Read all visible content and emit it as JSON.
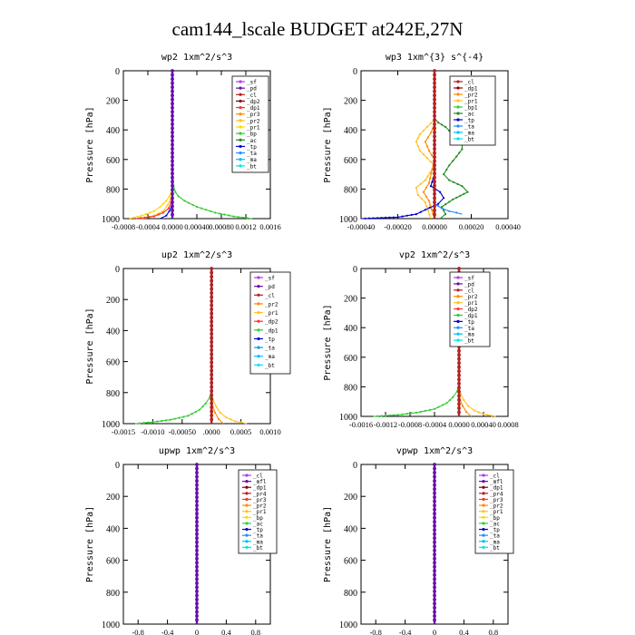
{
  "title": "cam144_lscale  BUDGET at242E,27N",
  "chart_data": [
    {
      "name": "wp2",
      "type": "line",
      "title": "wp2   1xm^2/s^3",
      "ylabel": "Pressure [hPa]",
      "xlabel": "",
      "xlim": [
        -0.0008,
        0.0016
      ],
      "ylim": [
        1000,
        0
      ],
      "xticks": [
        -0.0008,
        -0.0004,
        0,
        0.0004,
        0.0008,
        0.0012,
        0.0016
      ],
      "xticklabels": [
        "-0.0008",
        "-0.0004",
        "0.0000",
        "0.00040",
        "0.00080",
        "0.0012",
        "0.0016"
      ],
      "yticks": [
        0,
        200,
        400,
        600,
        800,
        1000
      ],
      "yticklabels": [
        "0",
        "200",
        "400",
        "600",
        "800",
        "1000"
      ],
      "legend": [
        {
          "label": "_sf",
          "color": "#b23aee"
        },
        {
          "label": "_pd",
          "color": "#6a0dad"
        },
        {
          "label": "_cl",
          "color": "#b22222"
        },
        {
          "label": "_dp2",
          "color": "#8b0000"
        },
        {
          "label": "_dp1",
          "color": "#ff3030"
        },
        {
          "label": "_pr3",
          "color": "#ff8c00"
        },
        {
          "label": "_pr2",
          "color": "#ffc125"
        },
        {
          "label": "_pr1",
          "color": "#ffd700"
        },
        {
          "label": "_bp",
          "color": "#32cd32"
        },
        {
          "label": "_ac",
          "color": "#228b22"
        },
        {
          "label": "_tp",
          "color": "#0000cd"
        },
        {
          "label": "_ta",
          "color": "#1e90ff"
        },
        {
          "label": "_ma",
          "color": "#00bfff"
        },
        {
          "label": "_bt",
          "color": "#00e5ee"
        }
      ],
      "series": [
        {
          "name": "_bp",
          "color": "#32cd32",
          "x": [
            0,
            0,
            2e-05,
            5e-05,
            0.0001,
            0.0002,
            0.0004,
            0.0007,
            0.001,
            0.0013
          ],
          "y": [
            0,
            700,
            780,
            820,
            850,
            880,
            920,
            960,
            985,
            1000
          ]
        },
        {
          "name": "_pr1",
          "color": "#ffd700",
          "x": [
            0,
            0,
            -5e-05,
            -0.0001,
            -0.0002,
            -0.0003,
            -0.0005,
            -0.0007
          ],
          "y": [
            0,
            800,
            850,
            880,
            920,
            950,
            980,
            1000
          ]
        },
        {
          "name": "_pr2",
          "color": "#ffc125",
          "x": [
            0,
            0,
            -3e-05,
            -8e-05,
            -0.00015,
            -0.0003,
            -0.0005
          ],
          "y": [
            0,
            820,
            870,
            910,
            950,
            980,
            1000
          ]
        },
        {
          "name": "_dp1",
          "color": "#ff3030",
          "x": [
            0,
            0,
            -2e-05,
            -6e-05,
            -0.00015,
            -0.0003,
            -0.0006
          ],
          "y": [
            0,
            840,
            890,
            930,
            960,
            985,
            1000
          ]
        },
        {
          "name": "_tp",
          "color": "#0000cd",
          "x": [
            0,
            0,
            -5e-05,
            -0.0001,
            -0.0002
          ],
          "y": [
            0,
            900,
            950,
            980,
            1000
          ]
        },
        {
          "name": "_sf",
          "color": "#6a0dad",
          "x": [
            0,
            0
          ],
          "y": [
            0,
            1000
          ]
        }
      ]
    },
    {
      "name": "wp3",
      "type": "line",
      "title": "wp3   1xm^{3} s^{-4}",
      "ylabel": "Pressure [hPa]",
      "xlabel": "",
      "xlim": [
        -0.0004,
        0.0004
      ],
      "ylim": [
        1000,
        0
      ],
      "xticks": [
        -0.0004,
        -0.0002,
        0,
        0.0002,
        0.0004
      ],
      "xticklabels": [
        "-0.00040",
        "-0.00020",
        "0.00000",
        "0.00020",
        "0.00040"
      ],
      "yticks": [
        0,
        200,
        400,
        600,
        800,
        1000
      ],
      "yticklabels": [
        "0",
        "200",
        "400",
        "600",
        "800",
        "1000"
      ],
      "legend": [
        {
          "label": "_cl",
          "color": "#b22222"
        },
        {
          "label": "_dp1",
          "color": "#8b0000"
        },
        {
          "label": "_pr2",
          "color": "#ff8c00"
        },
        {
          "label": "_pr1",
          "color": "#ffc125"
        },
        {
          "label": "_bp1",
          "color": "#32cd32"
        },
        {
          "label": "_ac",
          "color": "#228b22"
        },
        {
          "label": "_tp",
          "color": "#0000cd"
        },
        {
          "label": "_ta",
          "color": "#1e90ff"
        },
        {
          "label": "_ma",
          "color": "#00bfff"
        },
        {
          "label": "_bt",
          "color": "#00e5ee"
        }
      ],
      "series": [
        {
          "name": "_ac",
          "color": "#228b22",
          "x": [
            0,
            0,
            2e-05,
            6e-05,
            0.0001,
            0.00015,
            0.00015,
            0.00012,
            8e-05,
            5e-05,
            8e-05,
            0.00015,
            0.00018,
            0.0001,
            4e-05,
            6e-05,
            3e-05
          ],
          "y": [
            0,
            320,
            350,
            380,
            430,
            480,
            530,
            580,
            640,
            700,
            740,
            780,
            820,
            870,
            920,
            970,
            1000
          ]
        },
        {
          "name": "_pr1",
          "color": "#ffc125",
          "x": [
            0,
            0,
            -4e-05,
            -8e-05,
            -0.0001,
            -8e-05,
            -4e-05,
            0,
            -5e-05,
            -0.0001,
            -9e-05,
            -5e-05,
            -2e-05
          ],
          "y": [
            0,
            330,
            380,
            430,
            480,
            540,
            590,
            640,
            740,
            790,
            840,
            890,
            1000
          ]
        },
        {
          "name": "_pr2",
          "color": "#ff8c00",
          "x": [
            0,
            0,
            -2e-05,
            -5e-05,
            -3e-05,
            0,
            -3e-05,
            -6e-05,
            -3e-05,
            0
          ],
          "y": [
            0,
            360,
            420,
            480,
            540,
            600,
            760,
            820,
            880,
            1000
          ]
        },
        {
          "name": "_tp",
          "color": "#0000cd",
          "x": [
            0,
            0,
            -2e-05,
            3e-05,
            5e-05,
            2e-05,
            -5e-05,
            -0.0001,
            -0.0002,
            -0.0004
          ],
          "y": [
            0,
            700,
            780,
            820,
            860,
            900,
            940,
            970,
            990,
            1000
          ]
        },
        {
          "name": "_ta",
          "color": "#1e90ff",
          "x": [
            0,
            0,
            4e-05,
            8e-05,
            0.00012,
            0.00015
          ],
          "y": [
            0,
            900,
            930,
            950,
            960,
            970
          ]
        },
        {
          "name": "_cl",
          "color": "#b22222",
          "x": [
            0,
            0
          ],
          "y": [
            0,
            1000
          ]
        }
      ]
    },
    {
      "name": "up2",
      "type": "line",
      "title": "up2   1xm^2/s^3",
      "ylabel": "Pressure [hPa]",
      "xlabel": "",
      "xlim": [
        -0.0015,
        0.001
      ],
      "ylim": [
        1000,
        0
      ],
      "xticks": [
        -0.0015,
        -0.001,
        -0.0005,
        0,
        0.0005,
        0.001
      ],
      "xticklabels": [
        "-0.0015",
        "-0.0010",
        "-0.00050",
        ".0000",
        "0.0005",
        "0.0010"
      ],
      "yticks": [
        0,
        200,
        400,
        600,
        800,
        1000
      ],
      "yticklabels": [
        "0",
        "200",
        "400",
        "600",
        "800",
        "1000"
      ],
      "legend": [
        {
          "label": "_sf",
          "color": "#b23aee"
        },
        {
          "label": "_pd",
          "color": "#6a0dad"
        },
        {
          "label": "_cl",
          "color": "#b22222"
        },
        {
          "label": "_pr2",
          "color": "#ff8c00"
        },
        {
          "label": "_pr1",
          "color": "#ffc125"
        },
        {
          "label": "_dp2",
          "color": "#ff3030"
        },
        {
          "label": "_dp1",
          "color": "#32cd32"
        },
        {
          "label": "_tp",
          "color": "#0000cd"
        },
        {
          "label": "_ta",
          "color": "#1e90ff"
        },
        {
          "label": "_ma",
          "color": "#00bfff"
        },
        {
          "label": "_bt",
          "color": "#00e5ee"
        }
      ],
      "series": [
        {
          "name": "_dp1",
          "color": "#32cd32",
          "x": [
            0,
            0,
            -3e-05,
            -0.0001,
            -0.0002,
            -0.0004,
            -0.0007,
            -0.001,
            -0.0013
          ],
          "y": [
            0,
            780,
            830,
            870,
            910,
            950,
            975,
            990,
            1000
          ]
        },
        {
          "name": "_pr1",
          "color": "#ffc125",
          "x": [
            0,
            0,
            3e-05,
            8e-05,
            0.00015,
            0.00025,
            0.0004,
            0.0006
          ],
          "y": [
            0,
            800,
            850,
            890,
            930,
            960,
            985,
            1000
          ]
        },
        {
          "name": "_pr2",
          "color": "#ff8c00",
          "x": [
            0,
            0,
            2e-05,
            6e-05,
            0.00012,
            0.0002
          ],
          "y": [
            0,
            840,
            890,
            930,
            970,
            1000
          ]
        },
        {
          "name": "_cl",
          "color": "#b22222",
          "x": [
            0,
            0
          ],
          "y": [
            0,
            1000
          ]
        }
      ]
    },
    {
      "name": "vp2",
      "type": "line",
      "title": "vp2   1xm^2/s^3",
      "ylabel": "Pressure [hPa]",
      "xlabel": "",
      "xlim": [
        -0.0016,
        0.0008
      ],
      "ylim": [
        1000,
        0
      ],
      "xticks": [
        -0.0016,
        -0.0012,
        -0.0008,
        -0.0004,
        0,
        0.0004,
        0.0008
      ],
      "xticklabels": [
        "-0.0016",
        "-0.0012",
        "-0.0008",
        "-0.0004",
        "0.0000",
        "0.00040",
        "0.0008"
      ],
      "yticks": [
        0,
        200,
        400,
        600,
        800,
        1000
      ],
      "yticklabels": [
        "0",
        "200",
        "400",
        "600",
        "800",
        "1000"
      ],
      "legend": [
        {
          "label": "_sf",
          "color": "#b23aee"
        },
        {
          "label": "_pd",
          "color": "#6a0dad"
        },
        {
          "label": "_cl",
          "color": "#b22222"
        },
        {
          "label": "_pr2",
          "color": "#ff8c00"
        },
        {
          "label": "_pr1",
          "color": "#ffc125"
        },
        {
          "label": "_dp2",
          "color": "#ff3030"
        },
        {
          "label": "_dp1",
          "color": "#32cd32"
        },
        {
          "label": "_tp",
          "color": "#0000cd"
        },
        {
          "label": "_ta",
          "color": "#1e90ff"
        },
        {
          "label": "_ma",
          "color": "#00bfff"
        },
        {
          "label": "_bt",
          "color": "#00e5ee"
        }
      ],
      "series": [
        {
          "name": "_dp1",
          "color": "#32cd32",
          "x": [
            0,
            0,
            -3e-05,
            -0.0001,
            -0.0002,
            -0.0004,
            -0.0007,
            -0.001,
            -0.0014
          ],
          "y": [
            0,
            780,
            830,
            870,
            910,
            950,
            975,
            990,
            1000
          ]
        },
        {
          "name": "_pr1",
          "color": "#ffc125",
          "x": [
            0,
            0,
            3e-05,
            8e-05,
            0.00015,
            0.00025,
            0.0004,
            0.0006
          ],
          "y": [
            0,
            800,
            850,
            890,
            930,
            960,
            985,
            1000
          ]
        },
        {
          "name": "_pr2",
          "color": "#ff8c00",
          "x": [
            0,
            0,
            2e-05,
            6e-05,
            0.00012,
            0.0002
          ],
          "y": [
            0,
            840,
            890,
            930,
            970,
            1000
          ]
        },
        {
          "name": "_cl",
          "color": "#b22222",
          "x": [
            0,
            0
          ],
          "y": [
            0,
            1000
          ]
        }
      ]
    },
    {
      "name": "upwp",
      "type": "line",
      "title": "upwp   1xm^2/s^3",
      "ylabel": "Pressure [hPa]",
      "xlabel": "",
      "xlim": [
        -1,
        1
      ],
      "ylim": [
        1000,
        0
      ],
      "xticks": [
        -0.8,
        -0.4,
        0,
        0.4,
        0.8
      ],
      "xticklabels": [
        "-0.8",
        "-0.4",
        "0",
        "0.4",
        "0.8"
      ],
      "yticks": [
        0,
        200,
        400,
        600,
        800,
        1000
      ],
      "yticklabels": [
        "0",
        "200",
        "400",
        "600",
        "800",
        "1000"
      ],
      "legend": [
        {
          "label": "_cl",
          "color": "#b23aee"
        },
        {
          "label": "_mfl",
          "color": "#6a0dad"
        },
        {
          "label": "_dp1",
          "color": "#8b0000"
        },
        {
          "label": "_pr4",
          "color": "#b22222"
        },
        {
          "label": "_pr3",
          "color": "#ff3030"
        },
        {
          "label": "_pr2",
          "color": "#ff8c00"
        },
        {
          "label": "_pr1",
          "color": "#ffc125"
        },
        {
          "label": "_bp",
          "color": "#ffd700"
        },
        {
          "label": "_ac",
          "color": "#32cd32"
        },
        {
          "label": "_tp",
          "color": "#0000cd"
        },
        {
          "label": "_ta",
          "color": "#1e90ff"
        },
        {
          "label": "_ma",
          "color": "#00bfff"
        },
        {
          "label": "_bt",
          "color": "#00e5ee"
        }
      ],
      "series": [
        {
          "name": "_cl",
          "color": "#6a0dad",
          "x": [
            0,
            0
          ],
          "y": [
            0,
            1000
          ]
        }
      ]
    },
    {
      "name": "vpwp",
      "type": "line",
      "title": "vpwp   1xm^2/s^3",
      "ylabel": "Pressure [hPa]",
      "xlabel": "",
      "xlim": [
        -1,
        1
      ],
      "ylim": [
        1000,
        0
      ],
      "xticks": [
        -0.8,
        -0.4,
        0,
        0.4,
        0.8
      ],
      "xticklabels": [
        "-0.8",
        "-0.4",
        "0",
        "0.4",
        "0.8"
      ],
      "yticks": [
        0,
        200,
        400,
        600,
        800,
        1000
      ],
      "yticklabels": [
        "0",
        "200",
        "400",
        "600",
        "800",
        "1000"
      ],
      "legend": [
        {
          "label": "_cl",
          "color": "#b23aee"
        },
        {
          "label": "_mfl",
          "color": "#6a0dad"
        },
        {
          "label": "_dp1",
          "color": "#8b0000"
        },
        {
          "label": "_pr4",
          "color": "#b22222"
        },
        {
          "label": "_pr3",
          "color": "#ff3030"
        },
        {
          "label": "_pr2",
          "color": "#ff8c00"
        },
        {
          "label": "_pr1",
          "color": "#ffc125"
        },
        {
          "label": "_bp",
          "color": "#ffd700"
        },
        {
          "label": "_ac",
          "color": "#32cd32"
        },
        {
          "label": "_tp",
          "color": "#0000cd"
        },
        {
          "label": "_ta",
          "color": "#1e90ff"
        },
        {
          "label": "_ma",
          "color": "#00bfff"
        },
        {
          "label": "_bt",
          "color": "#00e5ee"
        }
      ],
      "series": [
        {
          "name": "_cl",
          "color": "#6a0dad",
          "x": [
            0,
            0
          ],
          "y": [
            0,
            1000
          ]
        }
      ]
    }
  ]
}
